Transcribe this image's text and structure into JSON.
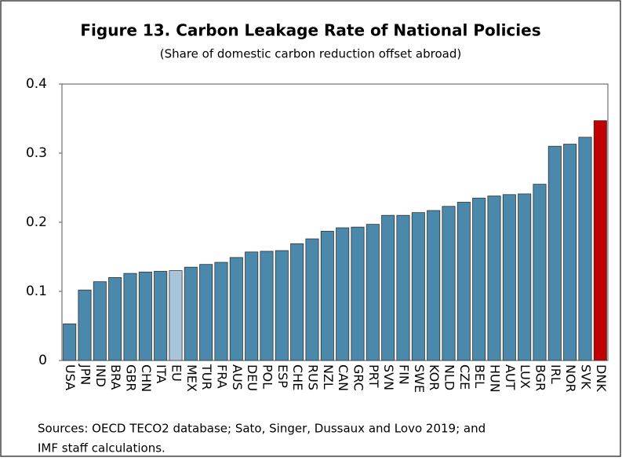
{
  "chart_data": {
    "type": "bar",
    "title": "Figure 13. Carbon Leakage Rate of National Policies",
    "subtitle": "(Share of domestic carbon reduction offset abroad)",
    "source": [
      "Sources: OECD TECO2 database; Sato, Singer, Dussaux and Lovo 2019; and",
      "IMF staff calculations."
    ],
    "categories": [
      "USA",
      "JPN",
      "IND",
      "BRA",
      "GBR",
      "CHN",
      "ITA",
      "EU",
      "MEX",
      "TUR",
      "FRA",
      "AUS",
      "DEU",
      "POL",
      "ESP",
      "CHE",
      "RUS",
      "NZL",
      "CAN",
      "GRC",
      "PRT",
      "SVN",
      "FIN",
      "SWE",
      "KOR",
      "NLD",
      "CZE",
      "BEL",
      "HUN",
      "AUT",
      "LUX",
      "BGR",
      "IRL",
      "NOR",
      "SVK",
      "DNK"
    ],
    "values": [
      0.053,
      0.102,
      0.114,
      0.12,
      0.126,
      0.128,
      0.129,
      0.13,
      0.135,
      0.139,
      0.142,
      0.149,
      0.157,
      0.158,
      0.159,
      0.169,
      0.176,
      0.187,
      0.192,
      0.193,
      0.197,
      0.21,
      0.21,
      0.214,
      0.217,
      0.223,
      0.229,
      0.235,
      0.238,
      0.24,
      0.241,
      0.255,
      0.31,
      0.313,
      0.323,
      0.347
    ],
    "colors": [
      "#4a89ac",
      "#4a89ac",
      "#4a89ac",
      "#4a89ac",
      "#4a89ac",
      "#4a89ac",
      "#4a89ac",
      "#a9c5db",
      "#4a89ac",
      "#4a89ac",
      "#4a89ac",
      "#4a89ac",
      "#4a89ac",
      "#4a89ac",
      "#4a89ac",
      "#4a89ac",
      "#4a89ac",
      "#4a89ac",
      "#4a89ac",
      "#4a89ac",
      "#4a89ac",
      "#4a89ac",
      "#4a89ac",
      "#4a89ac",
      "#4a89ac",
      "#4a89ac",
      "#4a89ac",
      "#4a89ac",
      "#4a89ac",
      "#4a89ac",
      "#4a89ac",
      "#4a89ac",
      "#4a89ac",
      "#4a89ac",
      "#4a89ac",
      "#c00000"
    ],
    "ylim": [
      0,
      0.4
    ],
    "yticks": [
      0,
      0.1,
      0.2,
      0.3,
      0.4
    ],
    "grid": false
  }
}
